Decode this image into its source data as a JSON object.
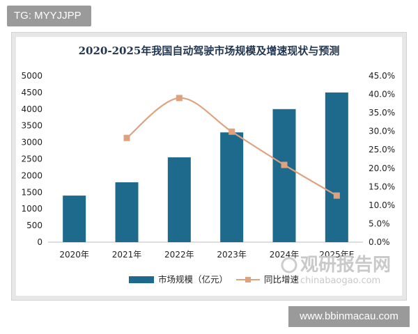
{
  "badge": {
    "text": "TG: MYYJJPP"
  },
  "footer": {
    "url": "www.bbinmacau.com"
  },
  "watermark": {
    "brand": "观研报告网",
    "domain": "chinabaogao.com"
  },
  "colors": {
    "bar": "#1e6a8d",
    "line": "#e0a27e",
    "title": "#1f3550"
  },
  "chart_data": {
    "type": "bar",
    "title": "2020-2025年我国自动驾驶市场规模及增速现状与预测",
    "categories": [
      "2020年",
      "2021年",
      "2022年",
      "2023年",
      "2024年",
      "2025年E"
    ],
    "series": [
      {
        "name": "市场规模（亿元）",
        "type": "bar",
        "axis": "left",
        "values": [
          1400,
          1800,
          2550,
          3300,
          4000,
          4500
        ]
      },
      {
        "name": "同比增速",
        "type": "line",
        "axis": "right",
        "values": [
          null,
          28.2,
          39.0,
          29.9,
          20.9,
          12.6
        ]
      }
    ],
    "ylim_left": [
      0,
      5000
    ],
    "yticks_left": [
      "0",
      "500",
      "1000",
      "1500",
      "2000",
      "2500",
      "3000",
      "3500",
      "4000",
      "4500",
      "5000"
    ],
    "ylim_right": [
      0,
      45
    ],
    "yticks_right": [
      "0.0%",
      "5.0%",
      "10.0%",
      "15.0%",
      "20.0%",
      "25.0%",
      "30.0%",
      "35.0%",
      "40.0%",
      "45.0%"
    ],
    "grid": false,
    "legend": "bottom"
  }
}
